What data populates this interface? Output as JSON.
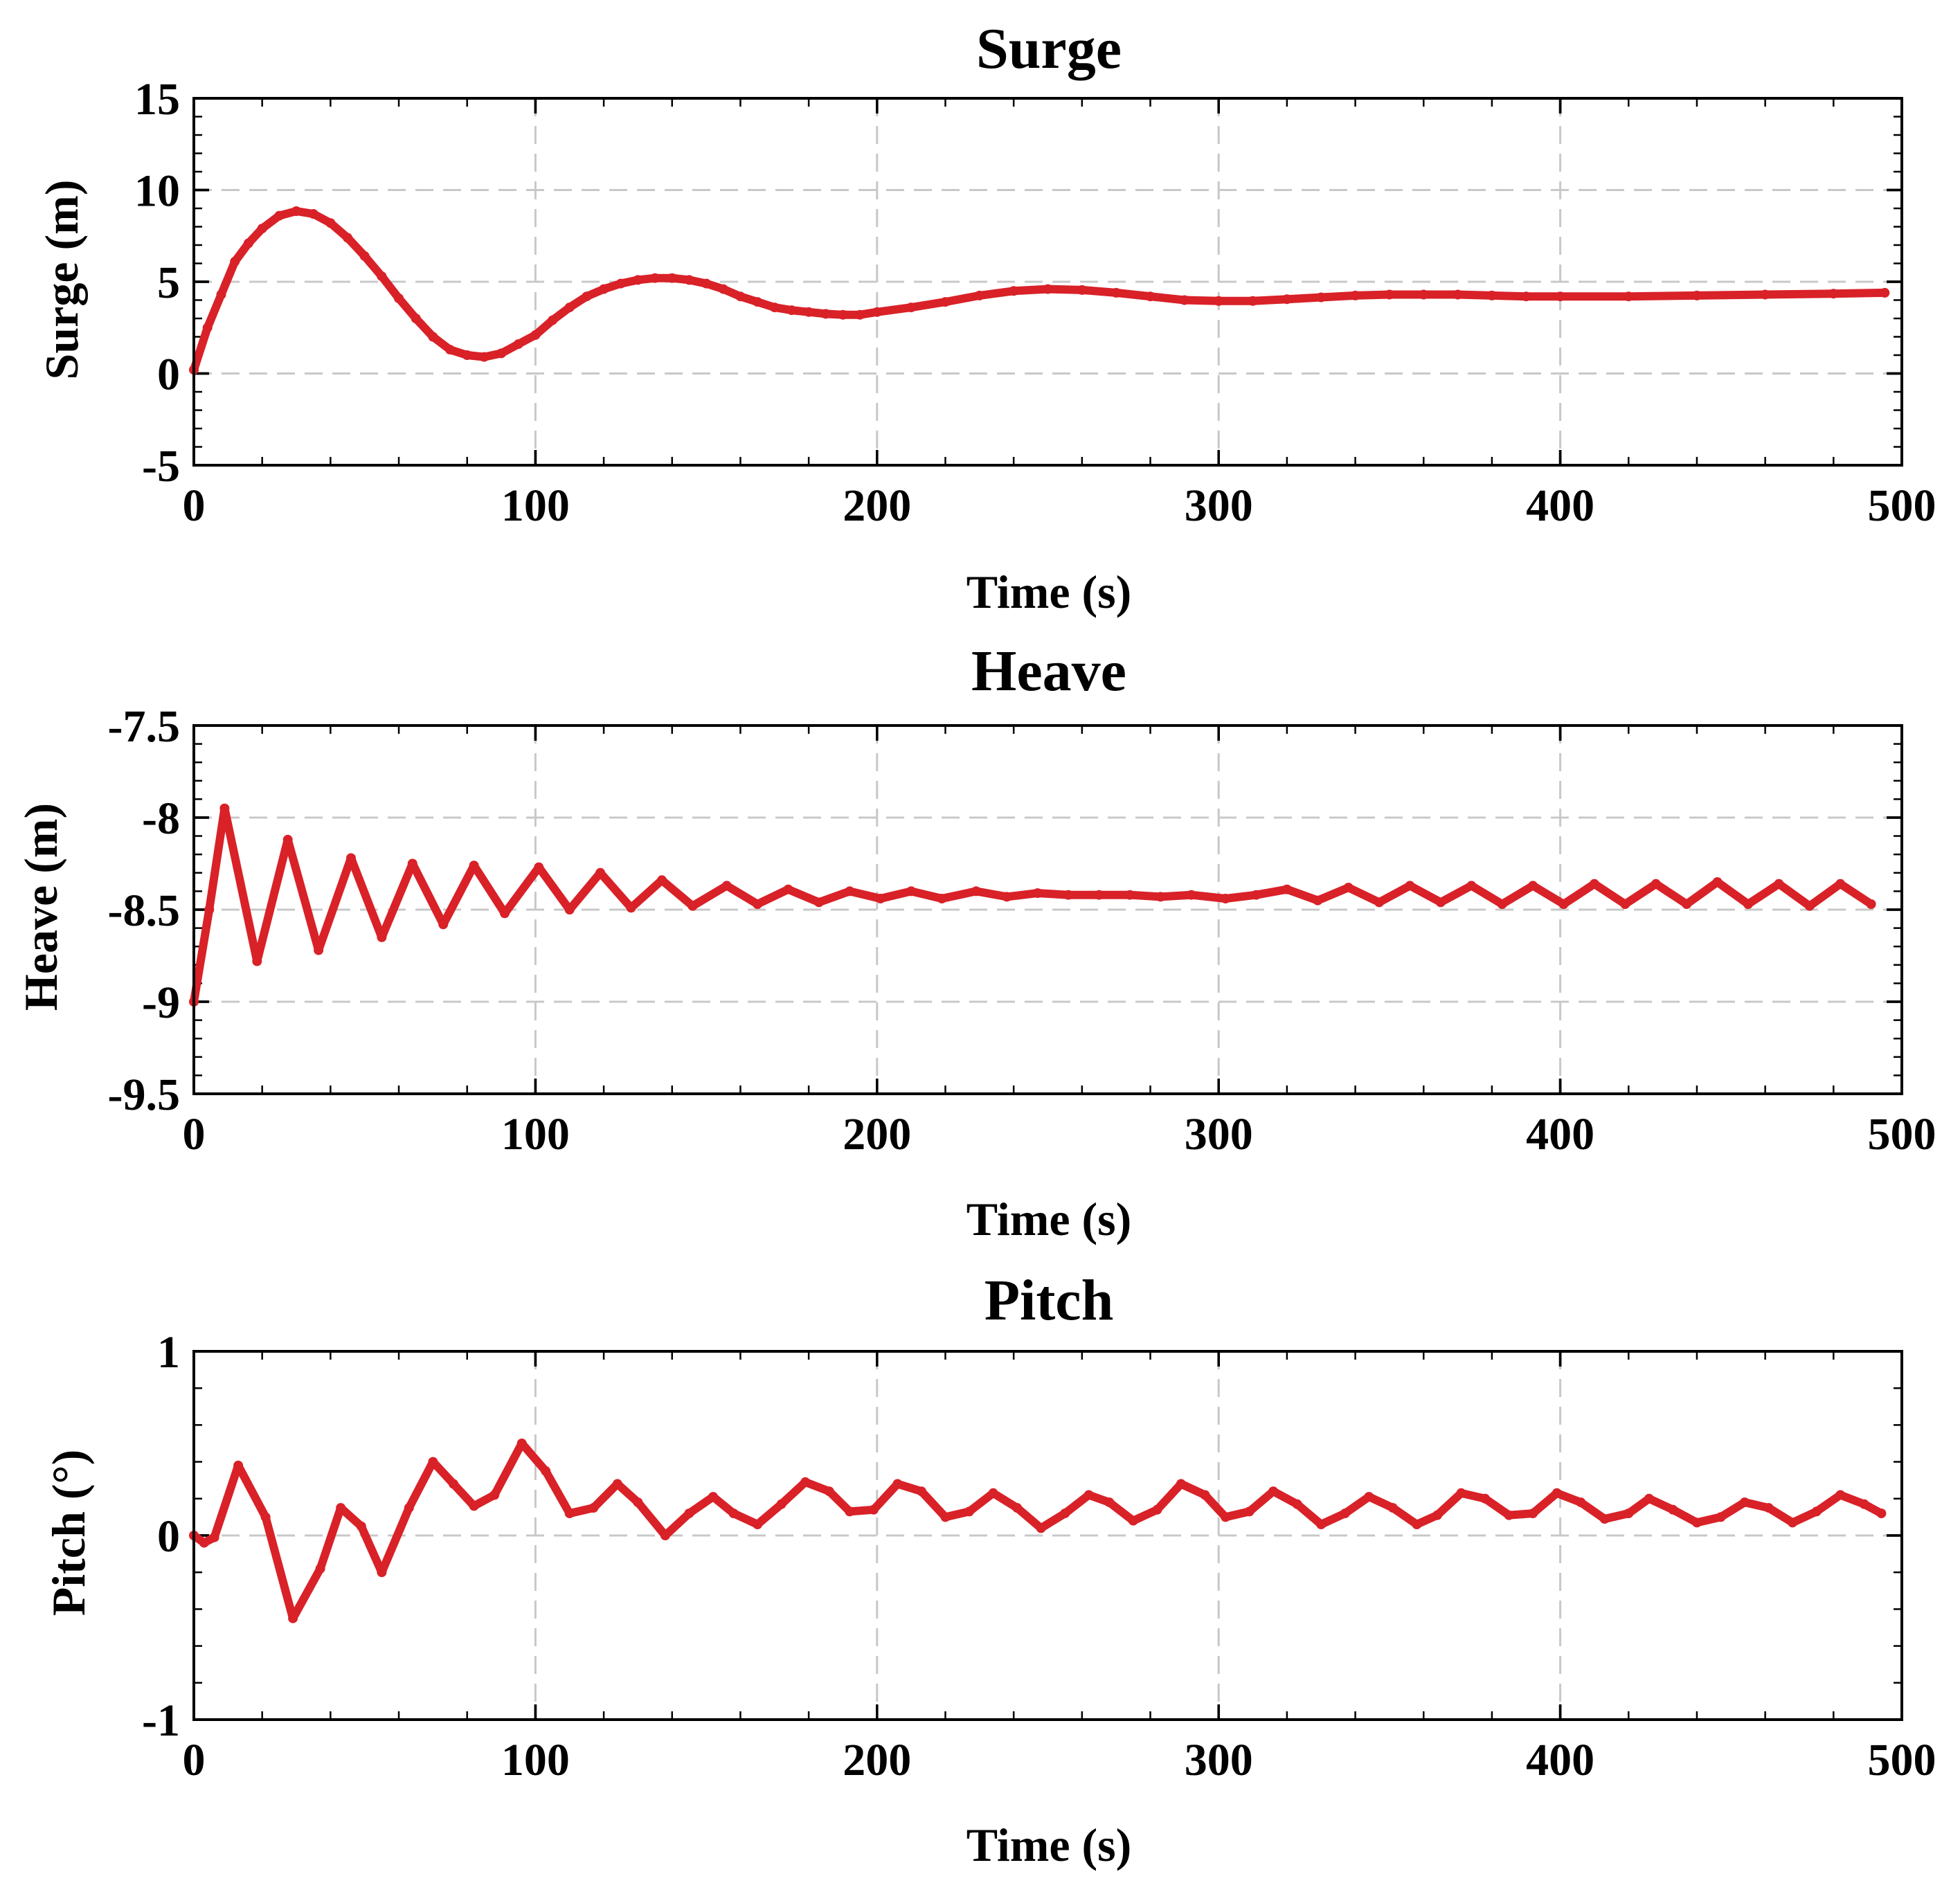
{
  "chart_data": [
    {
      "type": "line",
      "title": "Surge",
      "xlabel": "Time (s)",
      "ylabel": "Surge (m)",
      "xlim": [
        0,
        500
      ],
      "ylim": [
        -5,
        15
      ],
      "xticks": [
        0,
        100,
        200,
        300,
        400,
        500
      ],
      "yticks": [
        -5,
        0,
        5,
        10,
        15
      ],
      "xtick_labels": [
        "0",
        "100",
        "200",
        "300",
        "400",
        "500"
      ],
      "ytick_labels": [
        "-5",
        "0",
        "5",
        "10",
        "15"
      ],
      "grid": true,
      "series": [
        {
          "name": "Surge",
          "color": "#d92128",
          "x": [
            0,
            4,
            8,
            12,
            16,
            20,
            25,
            30,
            35,
            40,
            45,
            50,
            55,
            60,
            65,
            70,
            75,
            80,
            85,
            90,
            95,
            100,
            105,
            110,
            115,
            120,
            125,
            130,
            135,
            140,
            145,
            150,
            155,
            160,
            165,
            170,
            175,
            180,
            185,
            190,
            195,
            200,
            210,
            220,
            230,
            240,
            250,
            260,
            270,
            280,
            290,
            300,
            310,
            320,
            330,
            340,
            350,
            360,
            370,
            380,
            390,
            400,
            420,
            440,
            460,
            480,
            495
          ],
          "y": [
            0.2,
            2.5,
            4.3,
            6.1,
            7.1,
            7.9,
            8.6,
            8.85,
            8.7,
            8.2,
            7.4,
            6.4,
            5.3,
            4.1,
            3.0,
            2.0,
            1.3,
            1.0,
            0.9,
            1.1,
            1.6,
            2.1,
            2.9,
            3.6,
            4.2,
            4.6,
            4.9,
            5.1,
            5.2,
            5.2,
            5.1,
            4.9,
            4.6,
            4.2,
            3.9,
            3.6,
            3.45,
            3.35,
            3.25,
            3.2,
            3.2,
            3.35,
            3.6,
            3.9,
            4.25,
            4.5,
            4.6,
            4.55,
            4.4,
            4.2,
            4.0,
            3.95,
            3.95,
            4.05,
            4.15,
            4.25,
            4.3,
            4.3,
            4.3,
            4.25,
            4.2,
            4.2,
            4.2,
            4.25,
            4.3,
            4.35,
            4.4
          ]
        }
      ]
    },
    {
      "type": "line",
      "title": "Heave",
      "xlabel": "Time (s)",
      "ylabel": "Heave (m)",
      "xlim": [
        0,
        500
      ],
      "ylim": [
        -9.5,
        -7.5
      ],
      "xticks": [
        0,
        100,
        200,
        300,
        400,
        500
      ],
      "yticks": [
        -9.5,
        -9,
        -8.5,
        -8,
        -7.5
      ],
      "xtick_labels": [
        "0",
        "100",
        "200",
        "300",
        "400",
        "500"
      ],
      "ytick_labels": [
        "-9.5",
        "-9",
        "-8.5",
        "-8",
        "-7.5"
      ],
      "grid": true,
      "series": [
        {
          "name": "Heave",
          "color": "#d92128",
          "x": [
            0,
            4.5,
            9,
            18.5,
            27.5,
            36.5,
            46,
            55,
            64,
            73,
            82,
            91,
            101,
            110,
            119,
            128,
            137,
            146,
            156,
            165,
            174,
            183,
            192,
            201,
            210,
            219,
            229,
            238,
            247,
            256,
            265,
            274,
            283,
            292,
            302,
            311,
            320,
            329,
            338,
            347,
            356,
            365,
            374,
            383,
            392,
            401,
            410,
            419,
            428,
            437,
            446,
            455,
            464,
            473,
            482,
            491
          ],
          "y": [
            -9.0,
            -8.5,
            -7.95,
            -8.78,
            -8.12,
            -8.72,
            -8.22,
            -8.65,
            -8.25,
            -8.58,
            -8.26,
            -8.52,
            -8.27,
            -8.5,
            -8.3,
            -8.49,
            -8.34,
            -8.48,
            -8.37,
            -8.47,
            -8.39,
            -8.46,
            -8.4,
            -8.44,
            -8.4,
            -8.44,
            -8.4,
            -8.43,
            -8.41,
            -8.42,
            -8.42,
            -8.42,
            -8.43,
            -8.42,
            -8.44,
            -8.42,
            -8.39,
            -8.45,
            -8.38,
            -8.46,
            -8.37,
            -8.46,
            -8.37,
            -8.47,
            -8.37,
            -8.47,
            -8.36,
            -8.47,
            -8.36,
            -8.47,
            -8.35,
            -8.47,
            -8.36,
            -8.48,
            -8.36,
            -8.47
          ]
        }
      ]
    },
    {
      "type": "line",
      "title": "Pitch",
      "xlabel": "Time (s)",
      "ylabel": "Pitch (°)",
      "xlim": [
        0,
        500
      ],
      "ylim": [
        -1,
        1
      ],
      "xticks": [
        0,
        100,
        200,
        300,
        400,
        500
      ],
      "yticks": [
        -1,
        0,
        1
      ],
      "xtick_labels": [
        "0",
        "100",
        "200",
        "300",
        "400",
        "500"
      ],
      "ytick_labels": [
        "-1",
        "0",
        "1"
      ],
      "grid": true,
      "series": [
        {
          "name": "Pitch",
          "color": "#d92128",
          "x": [
            0,
            3,
            6,
            13,
            21,
            29,
            37,
            43,
            49,
            55,
            63,
            70,
            76,
            82,
            88,
            96,
            103,
            110,
            117,
            124,
            130,
            138,
            145,
            152,
            158,
            165,
            172,
            179,
            186,
            192,
            199,
            206,
            213,
            220,
            227,
            234,
            241,
            248,
            255,
            262,
            268,
            275,
            282,
            289,
            296,
            302,
            309,
            316,
            323,
            330,
            337,
            344,
            351,
            358,
            364,
            371,
            378,
            385,
            392,
            399,
            406,
            413,
            420,
            426,
            433,
            440,
            447,
            454,
            461,
            468,
            475,
            482,
            489,
            494
          ],
          "y": [
            0.0,
            -0.04,
            -0.01,
            0.38,
            0.1,
            -0.45,
            -0.18,
            0.15,
            0.05,
            -0.2,
            0.15,
            0.4,
            0.28,
            0.16,
            0.22,
            0.5,
            0.35,
            0.12,
            0.15,
            0.28,
            0.18,
            0.0,
            0.12,
            0.21,
            0.12,
            0.06,
            0.17,
            0.29,
            0.24,
            0.13,
            0.14,
            0.28,
            0.24,
            0.1,
            0.13,
            0.23,
            0.15,
            0.04,
            0.12,
            0.22,
            0.18,
            0.08,
            0.14,
            0.28,
            0.22,
            0.1,
            0.13,
            0.24,
            0.17,
            0.06,
            0.12,
            0.21,
            0.15,
            0.06,
            0.11,
            0.23,
            0.2,
            0.11,
            0.12,
            0.23,
            0.18,
            0.09,
            0.12,
            0.2,
            0.14,
            0.07,
            0.1,
            0.18,
            0.15,
            0.07,
            0.13,
            0.22,
            0.17,
            0.12
          ]
        }
      ]
    }
  ]
}
